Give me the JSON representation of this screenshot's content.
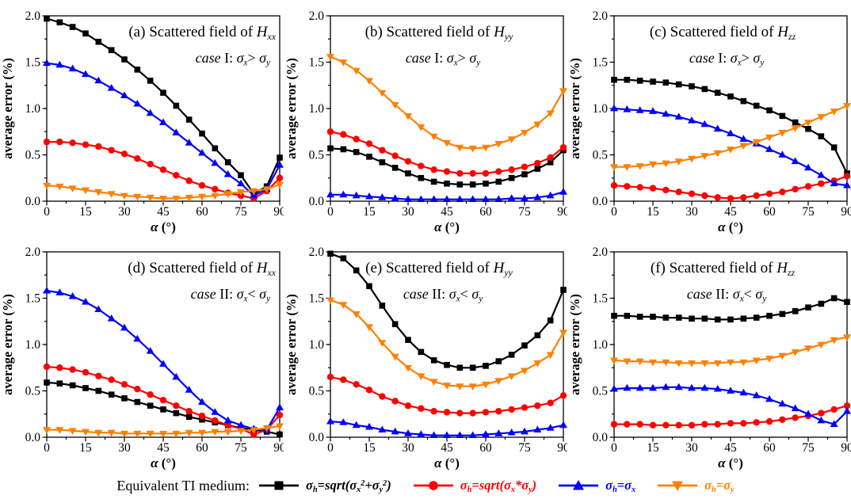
{
  "figure": {
    "legend": {
      "prefix": "Equivalent TI medium:",
      "items": [
        {
          "label": "/σ_{h}=sqrt(σ_{x}^{2}+σ_{y}^{2})/",
          "color": "#000000",
          "marker": "square"
        },
        {
          "label": "/σ_{h}=sqrt(σ_{x}*σ_{y})/",
          "color": "#FF0000",
          "marker": "circle"
        },
        {
          "label": "/σ_{h}=σ_{x}/",
          "color": "#0000FF",
          "marker": "triangle-up"
        },
        {
          "label": "/σ_{h}=σ_{y}/",
          "color": "#FF8000",
          "marker": "triangle-down"
        }
      ]
    }
  },
  "chart_data": [
    {
      "id": "a",
      "type": "line",
      "title": "(a) Scattered field of /H_{xx}/",
      "subtitle": "/case/ I: /σ_{x}/> /σ_{y}/",
      "title_align": "right",
      "xlabel": "/α/ (°)",
      "ylabel": "average error (%)",
      "xlim": [
        0,
        90
      ],
      "ylim": [
        0,
        2
      ],
      "xticks": [
        0,
        15,
        30,
        45,
        60,
        75,
        90
      ],
      "yticks": [
        "0.0",
        "0.5",
        "1.0",
        "1.5",
        "2.0"
      ],
      "x": [
        0,
        5,
        10,
        15,
        20,
        25,
        30,
        35,
        40,
        45,
        50,
        55,
        60,
        65,
        70,
        75,
        80,
        85,
        90
      ],
      "series": [
        {
          "name": "σh=sqrt(σx²+σy²)",
          "marker": "square",
          "color": "#000000",
          "values": [
            1.97,
            1.93,
            1.88,
            1.81,
            1.72,
            1.63,
            1.53,
            1.42,
            1.3,
            1.17,
            1.03,
            0.88,
            0.73,
            0.57,
            0.42,
            0.28,
            0.08,
            0.16,
            0.47
          ]
        },
        {
          "name": "σh=sqrt(σx*σy)",
          "marker": "circle",
          "color": "#FF0000",
          "values": [
            0.64,
            0.64,
            0.63,
            0.61,
            0.59,
            0.55,
            0.51,
            0.46,
            0.4,
            0.34,
            0.28,
            0.22,
            0.17,
            0.13,
            0.09,
            0.06,
            0.03,
            0.11,
            0.25
          ]
        },
        {
          "name": "σh=σx",
          "marker": "triangle-up",
          "color": "#0000FF",
          "values": [
            1.49,
            1.47,
            1.43,
            1.37,
            1.3,
            1.22,
            1.14,
            1.05,
            0.95,
            0.85,
            0.74,
            0.63,
            0.52,
            0.41,
            0.29,
            0.19,
            0.06,
            0.13,
            0.39
          ]
        },
        {
          "name": "σh=σy",
          "marker": "triangle-down",
          "color": "#FF8000",
          "values": [
            0.17,
            0.16,
            0.14,
            0.12,
            0.1,
            0.08,
            0.06,
            0.05,
            0.04,
            0.03,
            0.03,
            0.04,
            0.05,
            0.06,
            0.08,
            0.1,
            0.11,
            0.13,
            0.18
          ]
        }
      ]
    },
    {
      "id": "b",
      "type": "line",
      "title": "(b) Scattered field of /H_{yy}/",
      "subtitle": "/case/ I: /σ_{x}/> /σ_{y}/",
      "title_align": "center",
      "xlabel": "/α/ (°)",
      "ylabel": "average error (%)",
      "xlim": [
        0,
        90
      ],
      "ylim": [
        0,
        2
      ],
      "xticks": [
        0,
        15,
        30,
        45,
        60,
        75,
        90
      ],
      "yticks": [
        "0.0",
        "0.5",
        "1.0",
        "1.5",
        "2.0"
      ],
      "x": [
        0,
        5,
        10,
        15,
        20,
        25,
        30,
        35,
        40,
        45,
        50,
        55,
        60,
        65,
        70,
        75,
        80,
        85,
        90
      ],
      "series": [
        {
          "name": "σh=sqrt(σx²+σy²)",
          "marker": "square",
          "color": "#000000",
          "values": [
            0.57,
            0.56,
            0.53,
            0.48,
            0.42,
            0.36,
            0.3,
            0.25,
            0.21,
            0.19,
            0.18,
            0.18,
            0.19,
            0.21,
            0.25,
            0.29,
            0.35,
            0.42,
            0.55
          ]
        },
        {
          "name": "σh=sqrt(σx*σy)",
          "marker": "circle",
          "color": "#FF0000",
          "values": [
            0.75,
            0.72,
            0.67,
            0.62,
            0.55,
            0.49,
            0.43,
            0.38,
            0.34,
            0.32,
            0.3,
            0.3,
            0.3,
            0.32,
            0.34,
            0.37,
            0.41,
            0.47,
            0.58
          ]
        },
        {
          "name": "σh=σx",
          "marker": "triangle-up",
          "color": "#0000FF",
          "values": [
            0.07,
            0.07,
            0.06,
            0.05,
            0.04,
            0.03,
            0.02,
            0.02,
            0.02,
            0.02,
            0.02,
            0.02,
            0.02,
            0.02,
            0.03,
            0.03,
            0.04,
            0.06,
            0.1
          ]
        },
        {
          "name": "σh=σy",
          "marker": "triangle-down",
          "color": "#FF8000",
          "values": [
            1.56,
            1.5,
            1.41,
            1.3,
            1.17,
            1.04,
            0.92,
            0.8,
            0.7,
            0.63,
            0.58,
            0.57,
            0.58,
            0.62,
            0.67,
            0.74,
            0.83,
            0.95,
            1.19
          ]
        }
      ]
    },
    {
      "id": "c",
      "type": "line",
      "title": "(c) Scattered field of /H_{zz}/",
      "subtitle": "/case/ I: /σ_{x}/> /σ_{y}/",
      "title_align": "center",
      "xlabel": "/α/ (°)",
      "ylabel": "average error (%)",
      "xlim": [
        0,
        90
      ],
      "ylim": [
        0,
        2
      ],
      "xticks": [
        0,
        15,
        30,
        45,
        60,
        75,
        90
      ],
      "yticks": [
        "0.0",
        "0.5",
        "1.0",
        "1.5",
        "2.0"
      ],
      "x": [
        0,
        5,
        10,
        15,
        20,
        25,
        30,
        35,
        40,
        45,
        50,
        55,
        60,
        65,
        70,
        75,
        80,
        85,
        90
      ],
      "series": [
        {
          "name": "σh=sqrt(σx²+σy²)",
          "marker": "square",
          "color": "#000000",
          "values": [
            1.31,
            1.31,
            1.3,
            1.29,
            1.28,
            1.26,
            1.24,
            1.21,
            1.17,
            1.13,
            1.08,
            1.03,
            0.98,
            0.92,
            0.85,
            0.78,
            0.7,
            0.58,
            0.3
          ]
        },
        {
          "name": "σh=sqrt(σx*σy)",
          "marker": "circle",
          "color": "#FF0000",
          "values": [
            0.17,
            0.16,
            0.15,
            0.14,
            0.12,
            0.1,
            0.08,
            0.06,
            0.04,
            0.03,
            0.04,
            0.06,
            0.08,
            0.1,
            0.13,
            0.16,
            0.19,
            0.22,
            0.27
          ]
        },
        {
          "name": "σh=σx",
          "marker": "triangle-up",
          "color": "#0000FF",
          "values": [
            1.0,
            0.99,
            0.98,
            0.97,
            0.94,
            0.91,
            0.87,
            0.83,
            0.78,
            0.73,
            0.67,
            0.62,
            0.56,
            0.5,
            0.43,
            0.36,
            0.28,
            0.19,
            0.17
          ]
        },
        {
          "name": "σh=σy",
          "marker": "triangle-down",
          "color": "#FF8000",
          "values": [
            0.37,
            0.37,
            0.38,
            0.4,
            0.41,
            0.43,
            0.46,
            0.49,
            0.52,
            0.56,
            0.6,
            0.64,
            0.69,
            0.74,
            0.79,
            0.85,
            0.91,
            0.97,
            1.03
          ]
        }
      ]
    },
    {
      "id": "d",
      "type": "line",
      "title": "(d) Scattered field of /H_{xx}/",
      "subtitle": "/case/ II: /σ_{x}/< /σ_{y}/",
      "title_align": "right",
      "xlabel": "/α/ (°)",
      "ylabel": "average error (%)",
      "xlim": [
        0,
        90
      ],
      "ylim": [
        0,
        2
      ],
      "xticks": [
        0,
        15,
        30,
        45,
        60,
        75,
        90
      ],
      "yticks": [
        "0.0",
        "0.5",
        "1.0",
        "1.5",
        "2.0"
      ],
      "x": [
        0,
        5,
        10,
        15,
        20,
        25,
        30,
        35,
        40,
        45,
        50,
        55,
        60,
        65,
        70,
        75,
        80,
        85,
        90
      ],
      "series": [
        {
          "name": "σh=sqrt(σx²+σy²)",
          "marker": "square",
          "color": "#000000",
          "values": [
            0.59,
            0.58,
            0.56,
            0.53,
            0.5,
            0.46,
            0.42,
            0.38,
            0.34,
            0.3,
            0.26,
            0.22,
            0.19,
            0.16,
            0.13,
            0.1,
            0.08,
            0.06,
            0.03
          ]
        },
        {
          "name": "σh=sqrt(σx*σy)",
          "marker": "circle",
          "color": "#FF0000",
          "values": [
            0.76,
            0.75,
            0.73,
            0.7,
            0.66,
            0.62,
            0.57,
            0.52,
            0.46,
            0.4,
            0.34,
            0.28,
            0.23,
            0.18,
            0.13,
            0.09,
            0.03,
            0.08,
            0.24
          ]
        },
        {
          "name": "σh=σx",
          "marker": "triangle-up",
          "color": "#0000FF",
          "values": [
            1.58,
            1.56,
            1.52,
            1.46,
            1.38,
            1.28,
            1.18,
            1.06,
            0.93,
            0.79,
            0.65,
            0.51,
            0.38,
            0.27,
            0.18,
            0.13,
            0.09,
            0.08,
            0.32
          ]
        },
        {
          "name": "σh=σy",
          "marker": "triangle-down",
          "color": "#FF8000",
          "values": [
            0.08,
            0.08,
            0.07,
            0.06,
            0.05,
            0.05,
            0.04,
            0.04,
            0.04,
            0.04,
            0.04,
            0.05,
            0.05,
            0.06,
            0.06,
            0.07,
            0.08,
            0.1,
            0.12
          ]
        }
      ]
    },
    {
      "id": "e",
      "type": "line",
      "title": "(e) Scattered field of /H_{yy}/",
      "subtitle": "/case/ II: /σ_{x}/< /σ_{y}/",
      "title_align": "center",
      "xlabel": "/α/ (°)",
      "ylabel": "average error (%)",
      "xlim": [
        0,
        90
      ],
      "ylim": [
        0,
        2
      ],
      "xticks": [
        0,
        15,
        30,
        45,
        60,
        75,
        90
      ],
      "yticks": [
        "0.0",
        "0.5",
        "1.0",
        "1.5",
        "2.0"
      ],
      "x": [
        0,
        5,
        10,
        15,
        20,
        25,
        30,
        35,
        40,
        45,
        50,
        55,
        60,
        65,
        70,
        75,
        80,
        85,
        90
      ],
      "series": [
        {
          "name": "σh=sqrt(σx²+σy²)",
          "marker": "square",
          "color": "#000000",
          "values": [
            1.98,
            1.93,
            1.8,
            1.63,
            1.42,
            1.22,
            1.05,
            0.92,
            0.83,
            0.78,
            0.75,
            0.75,
            0.77,
            0.82,
            0.89,
            0.99,
            1.1,
            1.26,
            1.59
          ]
        },
        {
          "name": "σh=sqrt(σx*σy)",
          "marker": "circle",
          "color": "#FF0000",
          "values": [
            0.65,
            0.62,
            0.57,
            0.51,
            0.44,
            0.39,
            0.34,
            0.31,
            0.28,
            0.27,
            0.26,
            0.26,
            0.27,
            0.28,
            0.3,
            0.32,
            0.34,
            0.37,
            0.45
          ]
        },
        {
          "name": "σh=σx",
          "marker": "triangle-up",
          "color": "#0000FF",
          "values": [
            0.17,
            0.16,
            0.13,
            0.11,
            0.08,
            0.06,
            0.04,
            0.03,
            0.02,
            0.02,
            0.02,
            0.02,
            0.03,
            0.04,
            0.05,
            0.06,
            0.08,
            0.1,
            0.13
          ]
        },
        {
          "name": "σh=σy",
          "marker": "triangle-down",
          "color": "#FF8000",
          "values": [
            1.48,
            1.43,
            1.33,
            1.19,
            1.02,
            0.87,
            0.75,
            0.66,
            0.6,
            0.56,
            0.55,
            0.55,
            0.57,
            0.61,
            0.66,
            0.72,
            0.8,
            0.89,
            1.13
          ]
        }
      ]
    },
    {
      "id": "f",
      "type": "line",
      "title": "(f) Scattered field of /H_{zz}/",
      "subtitle": "/case/ II: /σ_{x}/< /σ_{y}/",
      "title_align": "center",
      "xlabel": "/α/ (°)",
      "ylabel": "average error (%)",
      "xlim": [
        0,
        90
      ],
      "ylim": [
        0,
        2
      ],
      "xticks": [
        0,
        15,
        30,
        45,
        60,
        75,
        90
      ],
      "yticks": [
        "0.0",
        "0.5",
        "1.0",
        "1.5",
        "2.0"
      ],
      "x": [
        0,
        5,
        10,
        15,
        20,
        25,
        30,
        35,
        40,
        45,
        50,
        55,
        60,
        65,
        70,
        75,
        80,
        85,
        90
      ],
      "series": [
        {
          "name": "σh=sqrt(σx²+σy²)",
          "marker": "square",
          "color": "#000000",
          "values": [
            1.31,
            1.31,
            1.3,
            1.3,
            1.29,
            1.29,
            1.28,
            1.28,
            1.27,
            1.27,
            1.28,
            1.29,
            1.31,
            1.33,
            1.36,
            1.4,
            1.44,
            1.5,
            1.46
          ]
        },
        {
          "name": "σh=sqrt(σx*σy)",
          "marker": "circle",
          "color": "#FF0000",
          "values": [
            0.14,
            0.14,
            0.14,
            0.13,
            0.13,
            0.13,
            0.13,
            0.14,
            0.14,
            0.15,
            0.15,
            0.16,
            0.17,
            0.19,
            0.21,
            0.23,
            0.26,
            0.3,
            0.34
          ]
        },
        {
          "name": "σh=σx",
          "marker": "triangle-up",
          "color": "#0000FF",
          "values": [
            0.52,
            0.53,
            0.53,
            0.53,
            0.54,
            0.54,
            0.53,
            0.53,
            0.52,
            0.5,
            0.48,
            0.45,
            0.41,
            0.36,
            0.31,
            0.25,
            0.18,
            0.14,
            0.28
          ]
        },
        {
          "name": "σh=σy",
          "marker": "triangle-down",
          "color": "#FF8000",
          "values": [
            0.83,
            0.82,
            0.82,
            0.81,
            0.81,
            0.8,
            0.8,
            0.8,
            0.8,
            0.81,
            0.81,
            0.83,
            0.85,
            0.88,
            0.92,
            0.96,
            1.0,
            1.05,
            1.08
          ]
        }
      ]
    }
  ]
}
